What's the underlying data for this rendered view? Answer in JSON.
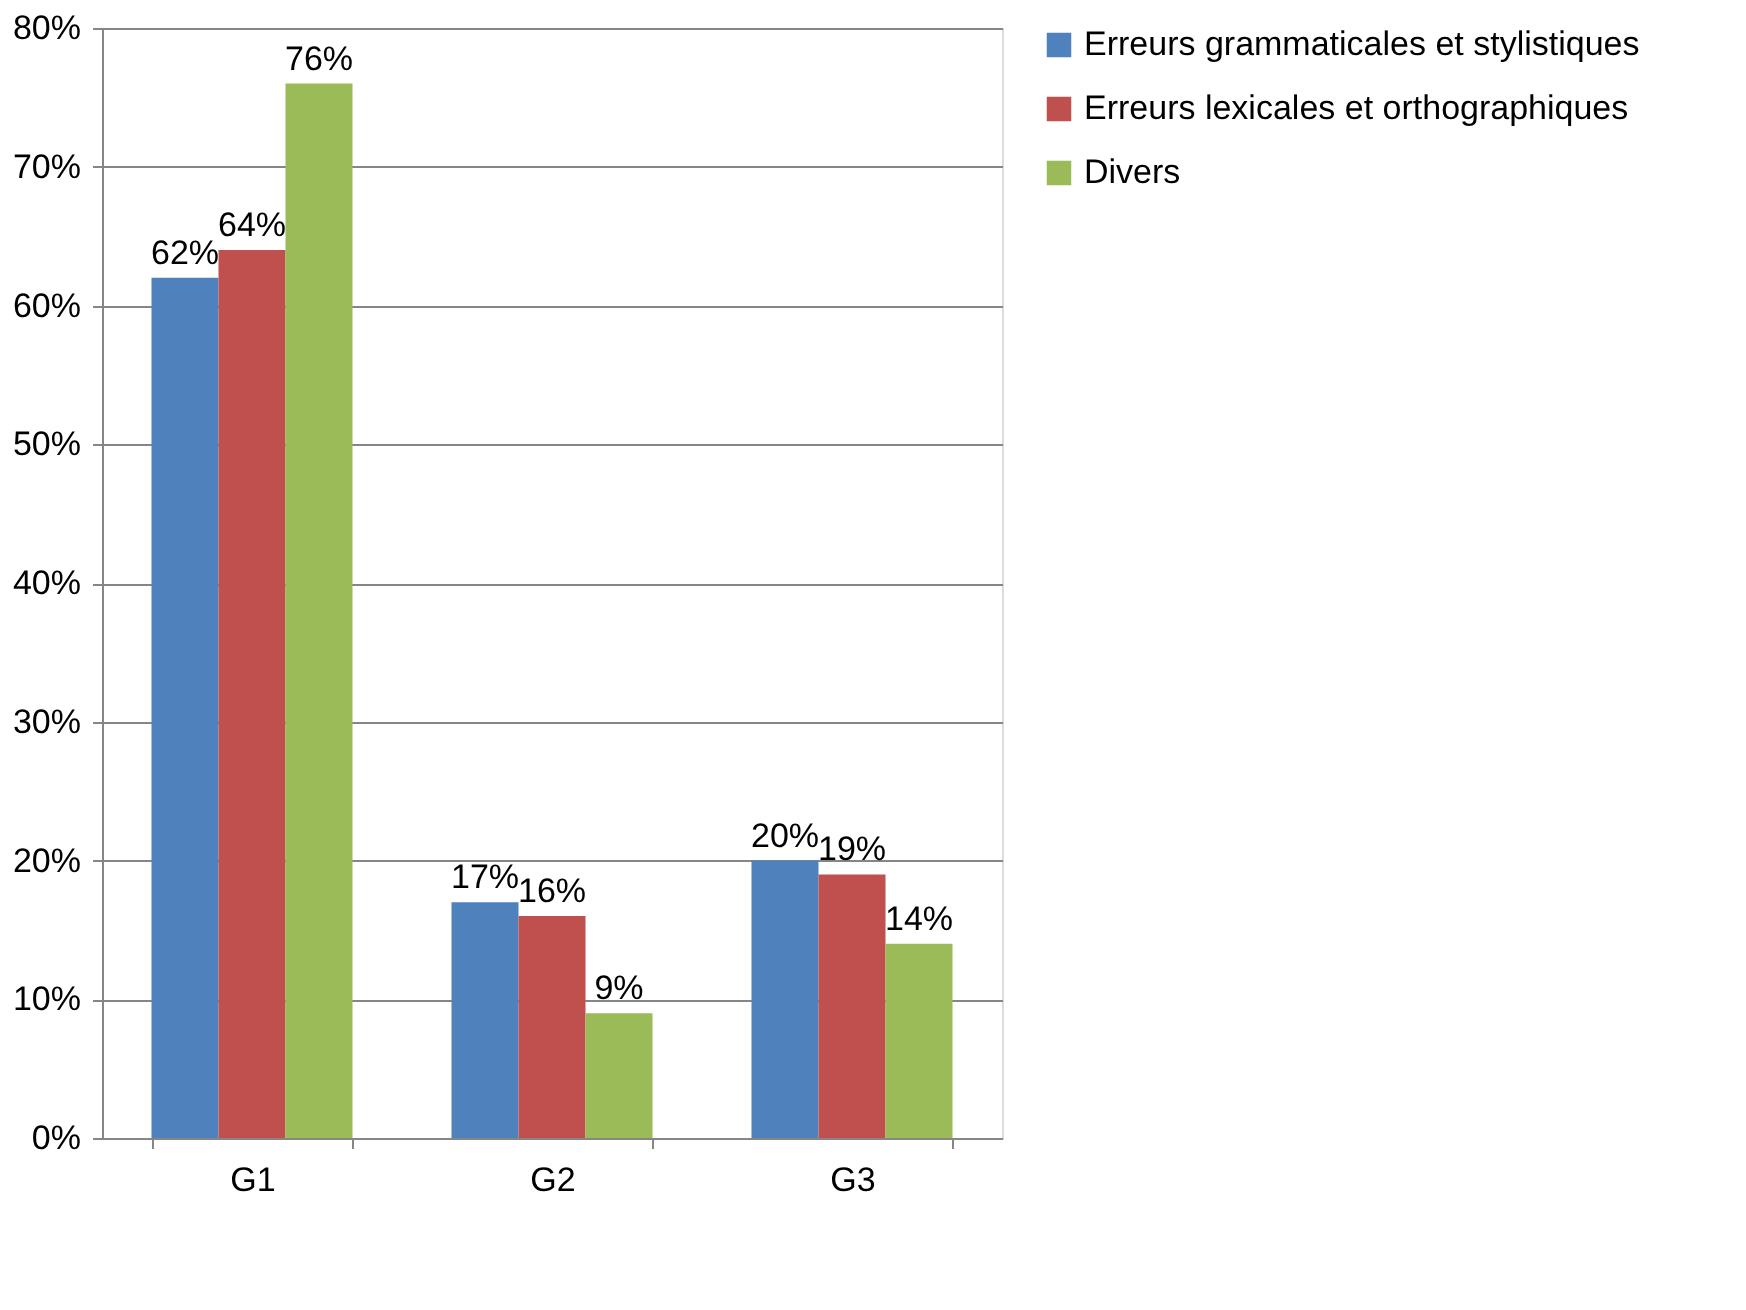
{
  "chart_data": {
    "type": "bar",
    "categories": [
      "G1",
      "G2",
      "G3"
    ],
    "series": [
      {
        "name": "Erreurs grammaticales et stylistiques",
        "color": "#4f81bd",
        "values": [
          62,
          17,
          20
        ],
        "value_labels": [
          "62%",
          "17%",
          "20%"
        ]
      },
      {
        "name": "Erreurs lexicales et orthographiques",
        "color": "#c0504d",
        "values": [
          64,
          16,
          19
        ],
        "value_labels": [
          "64%",
          "16%",
          "19%"
        ]
      },
      {
        "name": "Divers",
        "color": "#9bbb59",
        "values": [
          76,
          9,
          14
        ],
        "value_labels": [
          "76%",
          "9%",
          "14%"
        ]
      }
    ],
    "ylim": [
      0,
      80
    ],
    "yticks": [
      {
        "value": 0,
        "label": "0%"
      },
      {
        "value": 10,
        "label": "10%"
      },
      {
        "value": 20,
        "label": "20%"
      },
      {
        "value": 30,
        "label": "30%"
      },
      {
        "value": 40,
        "label": "40%"
      },
      {
        "value": 50,
        "label": "50%"
      },
      {
        "value": 60,
        "label": "60%"
      },
      {
        "value": 70,
        "label": "70%"
      },
      {
        "value": 80,
        "label": "80%"
      }
    ],
    "grid": "y",
    "legend": "right"
  }
}
